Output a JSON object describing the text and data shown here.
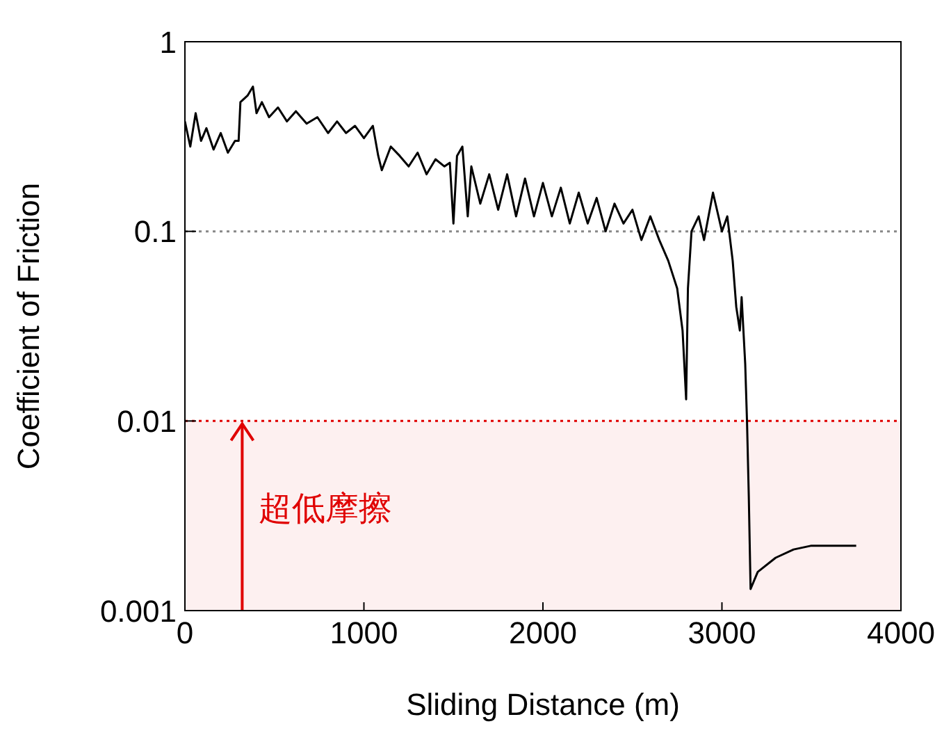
{
  "chart_data": {
    "type": "line",
    "xlabel": "Sliding Distance (m)",
    "ylabel": "Coefficient of Friction",
    "log": "y",
    "xlim": [
      0,
      4000
    ],
    "xticks": [
      0,
      1000,
      2000,
      3000,
      4000
    ],
    "ylim": [
      0.001,
      1
    ],
    "yticks": [
      0.001,
      0.01,
      0.1,
      1
    ],
    "grid": false,
    "legend": false,
    "marker": "none",
    "line_style": "solid",
    "x": [
      0,
      30,
      60,
      90,
      120,
      160,
      200,
      240,
      280,
      300,
      310,
      350,
      380,
      400,
      430,
      470,
      520,
      570,
      620,
      680,
      740,
      800,
      850,
      900,
      950,
      1000,
      1050,
      1080,
      1100,
      1150,
      1200,
      1250,
      1300,
      1350,
      1400,
      1450,
      1480,
      1500,
      1520,
      1550,
      1580,
      1600,
      1650,
      1700,
      1750,
      1800,
      1850,
      1900,
      1950,
      2000,
      2050,
      2100,
      2150,
      2200,
      2250,
      2300,
      2350,
      2400,
      2450,
      2500,
      2550,
      2600,
      2650,
      2700,
      2750,
      2780,
      2800,
      2810,
      2830,
      2870,
      2900,
      2950,
      3000,
      3030,
      3060,
      3080,
      3100,
      3110,
      3130,
      3140,
      3150,
      3160,
      3200,
      3300,
      3400,
      3500,
      3600,
      3700,
      3750
    ],
    "series": [
      {
        "color": "#000000",
        "values": [
          0.38,
          0.28,
          0.42,
          0.3,
          0.35,
          0.27,
          0.33,
          0.26,
          0.3,
          0.3,
          0.48,
          0.52,
          0.58,
          0.42,
          0.48,
          0.4,
          0.45,
          0.38,
          0.43,
          0.37,
          0.4,
          0.33,
          0.38,
          0.33,
          0.36,
          0.31,
          0.36,
          0.25,
          0.21,
          0.28,
          0.25,
          0.22,
          0.26,
          0.2,
          0.24,
          0.22,
          0.23,
          0.11,
          0.25,
          0.28,
          0.12,
          0.22,
          0.14,
          0.2,
          0.13,
          0.2,
          0.12,
          0.19,
          0.12,
          0.18,
          0.12,
          0.17,
          0.11,
          0.16,
          0.11,
          0.15,
          0.1,
          0.14,
          0.11,
          0.13,
          0.09,
          0.12,
          0.09,
          0.07,
          0.05,
          0.03,
          0.013,
          0.05,
          0.1,
          0.12,
          0.09,
          0.16,
          0.1,
          0.12,
          0.07,
          0.04,
          0.03,
          0.045,
          0.02,
          0.01,
          0.004,
          0.0013,
          0.0016,
          0.0019,
          0.0021,
          0.0022,
          0.0022,
          0.0022,
          0.0022
        ]
      }
    ],
    "ref_lines": [
      {
        "axis": "y",
        "value": 0.1,
        "color": "#888888",
        "line_style": "dotted"
      },
      {
        "axis": "y",
        "value": 0.01,
        "color": "#e00000",
        "line_style": "dotted"
      }
    ],
    "bands": [
      {
        "axis": "y",
        "from": 0.001,
        "to": 0.01,
        "color": "#fdf0f0"
      }
    ],
    "annotations": [
      "超低摩擦"
    ]
  }
}
